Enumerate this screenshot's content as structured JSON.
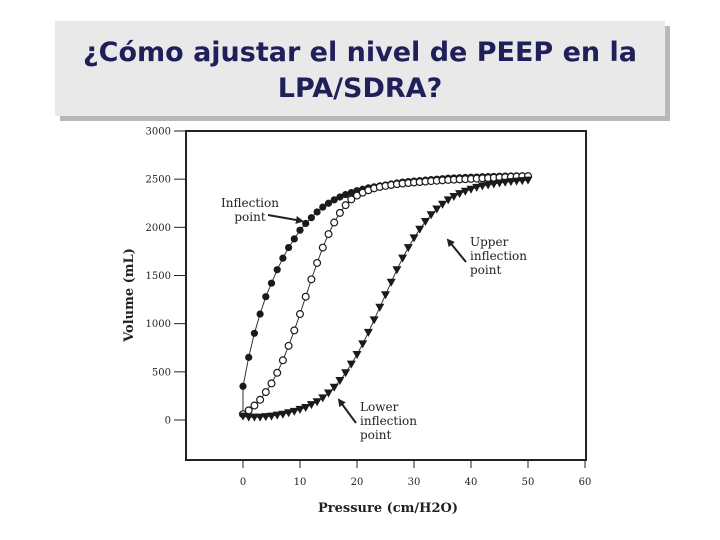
{
  "slide": {
    "title_line1": "¿Cómo ajustar el nivel de PEEP en la",
    "title_line2": "LPA/SDRA?"
  },
  "chart_data": {
    "type": "scatter",
    "xlabel": "Pressure (cm/H2O)",
    "ylabel": "Volume (mL)",
    "xlim": [
      0,
      60
    ],
    "ylim": [
      0,
      3000
    ],
    "x_ticks": [
      "0",
      "10",
      "20",
      "30",
      "40",
      "50",
      "60"
    ],
    "y_ticks": [
      "0",
      "500",
      "1000",
      "1500",
      "2000",
      "2500",
      "3000"
    ],
    "grid": false,
    "annotations": [
      {
        "id": "inflection",
        "lines": [
          "Inflection",
          "point"
        ]
      },
      {
        "id": "upper",
        "lines": [
          "Upper",
          "inflection",
          "point"
        ]
      },
      {
        "id": "lower",
        "lines": [
          "Lower",
          "inflection",
          "point"
        ]
      }
    ],
    "series": [
      {
        "marker": "filled-circle",
        "x": [
          0,
          0,
          1,
          2,
          3,
          4,
          5,
          6,
          7,
          8,
          9,
          10,
          11,
          12,
          13,
          14,
          15,
          16,
          17,
          18,
          19,
          20,
          21,
          22,
          23,
          24,
          25,
          26,
          27,
          28,
          29,
          30,
          31,
          32,
          33,
          34,
          35,
          36,
          37,
          38,
          39,
          40,
          41,
          42,
          43,
          44,
          45,
          46,
          47,
          48,
          49,
          50
        ],
        "y": [
          60,
          350,
          650,
          900,
          1100,
          1280,
          1420,
          1560,
          1680,
          1790,
          1880,
          1970,
          2040,
          2100,
          2160,
          2210,
          2250,
          2285,
          2315,
          2340,
          2360,
          2380,
          2395,
          2410,
          2420,
          2430,
          2440,
          2450,
          2460,
          2470,
          2475,
          2480,
          2485,
          2490,
          2495,
          2500,
          2505,
          2510,
          2512,
          2515,
          2518,
          2520,
          2522,
          2525,
          2527,
          2528,
          2530,
          2532,
          2533,
          2534,
          2535,
          2535
        ]
      },
      {
        "marker": "open-circle",
        "x": [
          0,
          1,
          2,
          3,
          4,
          5,
          6,
          7,
          8,
          9,
          10,
          11,
          12,
          13,
          14,
          15,
          16,
          17,
          18,
          19,
          20,
          21,
          22,
          23,
          24,
          25,
          26,
          27,
          28,
          29,
          30,
          31,
          32,
          33,
          34,
          35,
          36,
          37,
          38,
          39,
          40,
          41,
          42,
          43,
          44,
          45,
          46,
          47,
          48,
          49,
          50
        ],
        "y": [
          60,
          100,
          150,
          210,
          290,
          380,
          490,
          620,
          770,
          930,
          1100,
          1280,
          1460,
          1630,
          1790,
          1930,
          2050,
          2150,
          2230,
          2290,
          2330,
          2360,
          2385,
          2405,
          2420,
          2430,
          2440,
          2448,
          2455,
          2460,
          2466,
          2470,
          2475,
          2480,
          2484,
          2488,
          2492,
          2495,
          2498,
          2500,
          2503,
          2506,
          2509,
          2512,
          2515,
          2518,
          2521,
          2524,
          2527,
          2530,
          2532
        ]
      },
      {
        "marker": "filled-triangle-down",
        "x": [
          0,
          1,
          2,
          3,
          4,
          5,
          6,
          7,
          8,
          9,
          10,
          11,
          12,
          13,
          14,
          15,
          16,
          17,
          18,
          19,
          20,
          21,
          22,
          23,
          24,
          25,
          26,
          27,
          28,
          29,
          30,
          31,
          32,
          33,
          34,
          35,
          36,
          37,
          38,
          39,
          40,
          41,
          42,
          43,
          44,
          45,
          46,
          47,
          48,
          49,
          50
        ],
        "y": [
          40,
          30,
          30,
          30,
          35,
          40,
          50,
          60,
          75,
          90,
          110,
          130,
          160,
          190,
          230,
          280,
          340,
          410,
          490,
          580,
          680,
          790,
          910,
          1040,
          1170,
          1300,
          1430,
          1560,
          1680,
          1790,
          1890,
          1980,
          2060,
          2130,
          2190,
          2240,
          2285,
          2320,
          2350,
          2375,
          2395,
          2415,
          2430,
          2440,
          2450,
          2460,
          2468,
          2475,
          2480,
          2485,
          2490
        ]
      }
    ]
  }
}
